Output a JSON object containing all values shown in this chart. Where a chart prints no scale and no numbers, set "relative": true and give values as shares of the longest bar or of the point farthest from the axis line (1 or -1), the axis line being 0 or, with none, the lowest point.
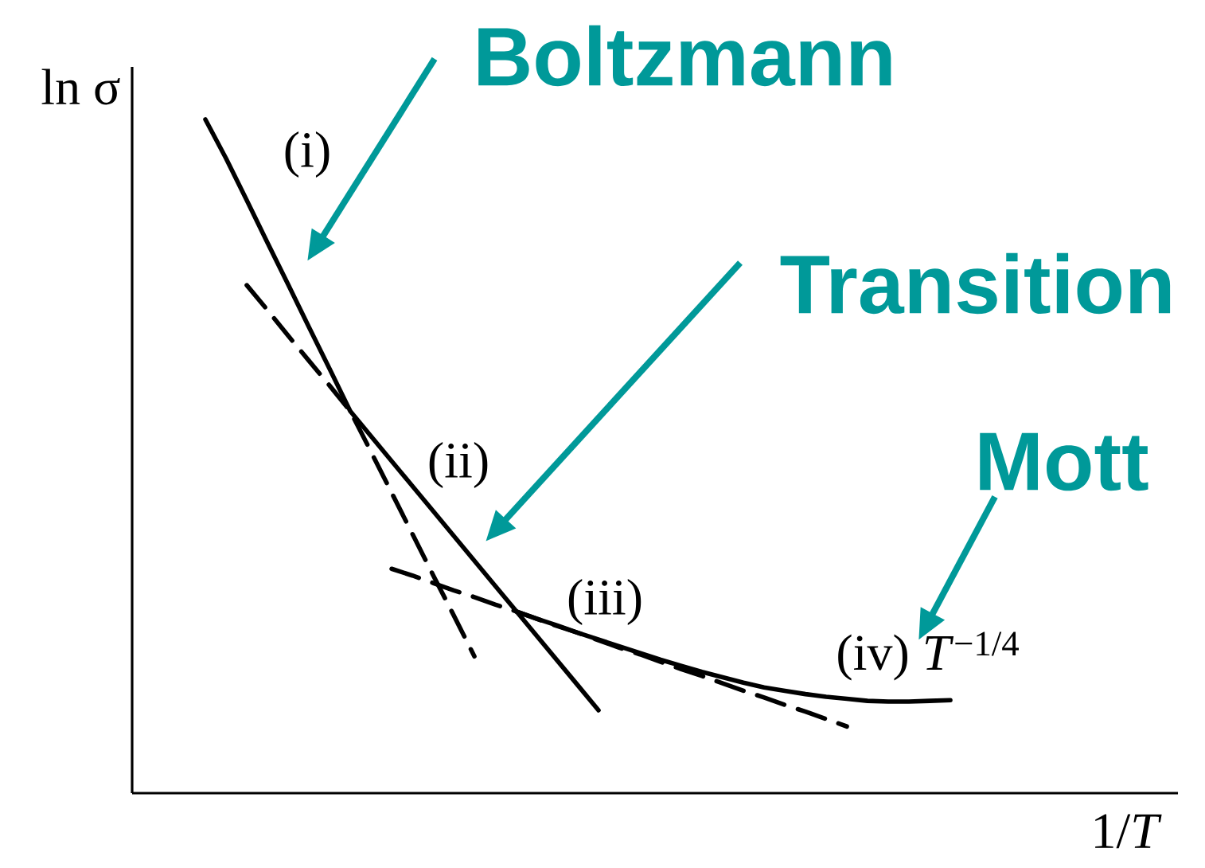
{
  "chart_data": {
    "type": "line",
    "relative": true,
    "tick_labels": false,
    "xlabel": "1/*T*",
    "ylabel": "ln σ",
    "categories": [
      null,
      null,
      null,
      null,
      null,
      null,
      null,
      null,
      null,
      null,
      null,
      null,
      null,
      null,
      null,
      null,
      null,
      null,
      null,
      null,
      null,
      null,
      null,
      null,
      null,
      null,
      null,
      null,
      null,
      null,
      null,
      null,
      null,
      null,
      null,
      null,
      null
    ],
    "series": [
      {
        "color": "#000000",
        "line_style": "solid",
        "values": [
          1.0,
          0.942,
          0.88,
          0.817,
          0.755,
          0.692,
          0.63,
          0.567,
          0.53,
          0.493,
          0.456,
          0.419,
          0.382,
          0.345,
          0.308,
          0.271,
          0.234,
          0.197,
          0.16,
          0.123,
          null,
          null,
          null,
          null,
          null,
          null,
          null,
          null,
          null,
          null,
          null,
          null,
          null,
          null,
          null,
          null,
          null
        ]
      },
      {
        "color": "#000000",
        "line_style": "dashed",
        "values": [
          null,
          null,
          0.754,
          0.717,
          0.679,
          0.642,
          0.605,
          0.567,
          0.507,
          0.446,
          0.385,
          0.324,
          0.264,
          0.203,
          null,
          null,
          null,
          null,
          null,
          null,
          null,
          null,
          null,
          null,
          null,
          null,
          null,
          null,
          null,
          null,
          null,
          null,
          null,
          null,
          null,
          null,
          null
        ]
      },
      {
        "color": "#000000",
        "line_style": "dashed",
        "values": [
          null,
          null,
          null,
          null,
          null,
          null,
          null,
          null,
          null,
          0.333,
          0.323,
          0.312,
          0.301,
          0.291,
          0.28,
          0.27,
          0.259,
          0.248,
          0.238,
          0.227,
          0.216,
          0.206,
          0.195,
          0.184,
          0.174,
          0.163,
          0.152,
          0.142,
          0.131,
          0.121,
          0.11,
          0.099,
          null,
          null,
          null,
          null,
          null
        ]
      },
      {
        "color": "#000000",
        "line_style": "solid",
        "values": [
          null,
          null,
          null,
          null,
          null,
          null,
          null,
          null,
          null,
          null,
          null,
          null,
          null,
          null,
          null,
          0.27,
          0.259,
          0.249,
          0.238,
          0.228,
          0.218,
          0.208,
          0.198,
          0.189,
          0.18,
          0.172,
          0.164,
          0.157,
          0.152,
          0.147,
          0.143,
          0.14,
          0.137,
          0.136,
          0.136,
          0.137,
          0.138
        ]
      }
    ],
    "annotations": [
      "Boltzmann",
      "(i)",
      "Transition",
      "(ii)",
      "Mott",
      "(iii)",
      "(iv) *T*$^{−1/4}$"
    ]
  }
}
